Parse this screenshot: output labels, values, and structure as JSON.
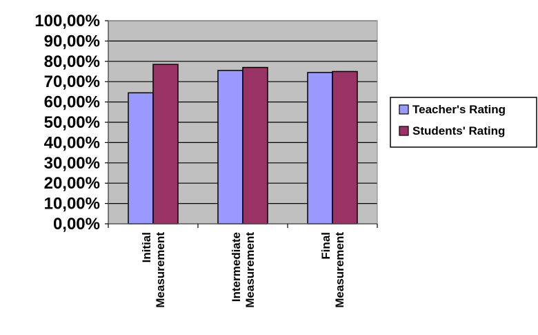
{
  "chart_data": {
    "type": "bar",
    "categories": [
      [
        "Initial",
        "Measurement"
      ],
      [
        "Intermediate",
        "Measurement"
      ],
      [
        "Final",
        "Measurement"
      ]
    ],
    "series": [
      {
        "name": "Teacher's Rating",
        "values": [
          64.5,
          75.5,
          74.5
        ],
        "color": "#9999ff"
      },
      {
        "name": "Students' Rating",
        "values": [
          78.5,
          77,
          75
        ],
        "color": "#993366"
      }
    ],
    "y_ticks": [
      "0,00%",
      "10,00%",
      "20,00%",
      "30,00%",
      "40,00%",
      "50,00%",
      "60,00%",
      "70,00%",
      "80,00%",
      "90,00%",
      "100,00%"
    ],
    "ylim": [
      0,
      100
    ],
    "grid": true,
    "plot_background": "#c0c0c0",
    "legend_position": "right",
    "title": "",
    "xlabel": "",
    "ylabel": ""
  }
}
